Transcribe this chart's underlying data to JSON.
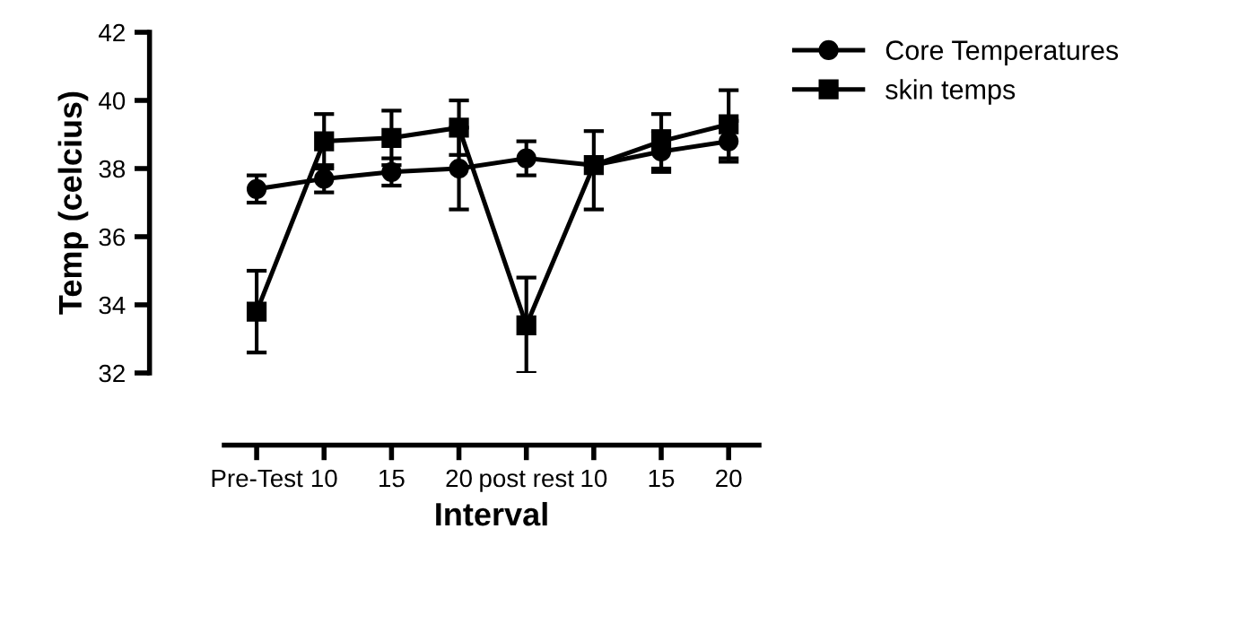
{
  "chart_data": {
    "type": "line",
    "xlabel": "Interval",
    "ylabel": "Temp (celcius)",
    "categories": [
      "Pre-Test",
      "10",
      "15",
      "20",
      "post rest",
      "10",
      "15",
      "20"
    ],
    "ylim": [
      32,
      42
    ],
    "yticks": [
      32,
      34,
      36,
      38,
      40,
      42
    ],
    "grid": false,
    "legend": "top right",
    "series": [
      {
        "name": "Core Temperatures",
        "color": "#000000",
        "marker": "circle",
        "values": [
          37.4,
          37.7,
          37.9,
          38.0,
          38.3,
          38.1,
          38.5,
          38.8
        ],
        "errors": [
          0.4,
          0.4,
          0.4,
          1.2,
          0.5,
          null,
          0.6,
          0.6
        ]
      },
      {
        "name": "skin temps",
        "color": "#000000",
        "marker": "square",
        "values": [
          33.8,
          38.8,
          38.9,
          39.2,
          33.4,
          38.1,
          38.8,
          39.3
        ],
        "errors": [
          1.2,
          0.8,
          0.8,
          0.8,
          1.4,
          [
            36.8,
            39.1
          ],
          0.8,
          1.0
        ]
      }
    ]
  }
}
